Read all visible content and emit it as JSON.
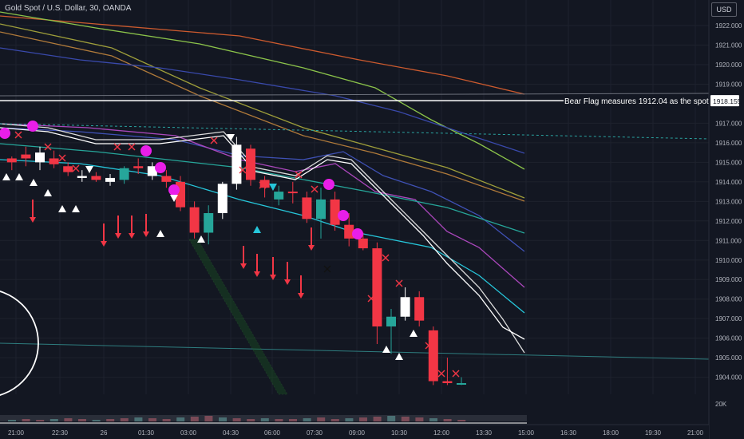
{
  "header": {
    "title": "Gold Spot / U.S. Dollar, 30, OANDA",
    "currency_button": "USD"
  },
  "annotation": {
    "text": "Bear Flag measures 1912.04 as the spot",
    "price_tag": "1918.155",
    "price": 1918.155
  },
  "volume_label": "20K",
  "colors": {
    "background": "#131722",
    "bull": "#26a69a",
    "bear": "#f23645",
    "white_candle": "#ffffff",
    "marker": "#e91ee9",
    "price_tag_bg": "#ffffff"
  },
  "chart_data": {
    "type": "candlestick",
    "title": "Gold Spot / U.S. Dollar, 30, OANDA",
    "y_axis": {
      "ticks": [
        "1922.000",
        "1921.000",
        "1920.000",
        "1919.000",
        "1917.000",
        "1916.000",
        "1915.000",
        "1914.000",
        "1913.000",
        "1912.000",
        "1911.000",
        "1910.000",
        "1909.000",
        "1908.000",
        "1907.000",
        "1906.000",
        "1905.000",
        "1904.000"
      ],
      "range": [
        1903.3,
        1922.6
      ]
    },
    "x_axis": {
      "ticks": [
        "21:00",
        "22:30",
        "26",
        "01:30",
        "03:00",
        "04:30",
        "06:00",
        "07:30",
        "09:00",
        "10:30",
        "12:00",
        "13:30",
        "15:00",
        "16:30",
        "18:00",
        "19:30",
        "21:00"
      ]
    },
    "candles": [
      {
        "o": 1915.0,
        "h": 1915.3,
        "l": 1914.6,
        "c": 1915.2,
        "color": "bear"
      },
      {
        "o": 1915.2,
        "h": 1915.8,
        "l": 1914.8,
        "c": 1915.4,
        "color": "bear"
      },
      {
        "o": 1915.0,
        "h": 1915.8,
        "l": 1914.6,
        "c": 1915.5,
        "color": "white"
      },
      {
        "o": 1915.2,
        "h": 1915.6,
        "l": 1914.7,
        "c": 1914.9,
        "color": "bear"
      },
      {
        "o": 1914.8,
        "h": 1915.0,
        "l": 1914.3,
        "c": 1914.5,
        "color": "bear"
      },
      {
        "o": 1914.2,
        "h": 1914.6,
        "l": 1914.0,
        "c": 1914.3,
        "color": "white"
      },
      {
        "o": 1914.3,
        "h": 1914.5,
        "l": 1914.0,
        "c": 1914.1,
        "color": "bear"
      },
      {
        "o": 1914.0,
        "h": 1914.4,
        "l": 1913.8,
        "c": 1914.2,
        "color": "white"
      },
      {
        "o": 1914.1,
        "h": 1914.8,
        "l": 1913.9,
        "c": 1914.7,
        "color": "bull"
      },
      {
        "o": 1914.7,
        "h": 1915.2,
        "l": 1914.4,
        "c": 1914.8,
        "color": "bear"
      },
      {
        "o": 1914.8,
        "h": 1915.0,
        "l": 1914.1,
        "c": 1914.3,
        "color": "white"
      },
      {
        "o": 1914.3,
        "h": 1914.6,
        "l": 1913.7,
        "c": 1914.0,
        "color": "bear"
      },
      {
        "o": 1914.0,
        "h": 1914.3,
        "l": 1912.5,
        "c": 1912.7,
        "color": "bear"
      },
      {
        "o": 1912.7,
        "h": 1913.0,
        "l": 1911.1,
        "c": 1911.4,
        "color": "bear"
      },
      {
        "o": 1911.4,
        "h": 1912.8,
        "l": 1910.8,
        "c": 1912.4,
        "color": "bull"
      },
      {
        "o": 1912.4,
        "h": 1914.0,
        "l": 1912.1,
        "c": 1913.9,
        "color": "white"
      },
      {
        "o": 1913.9,
        "h": 1916.3,
        "l": 1913.6,
        "c": 1915.9,
        "color": "white"
      },
      {
        "o": 1915.7,
        "h": 1915.9,
        "l": 1913.8,
        "c": 1914.1,
        "color": "bear"
      },
      {
        "o": 1914.1,
        "h": 1914.3,
        "l": 1913.2,
        "c": 1913.7,
        "color": "bear"
      },
      {
        "o": 1913.5,
        "h": 1913.8,
        "l": 1912.8,
        "c": 1913.1,
        "color": "bull"
      },
      {
        "o": 1913.5,
        "h": 1914.0,
        "l": 1912.9,
        "c": 1913.5,
        "color": "bear"
      },
      {
        "o": 1913.2,
        "h": 1913.5,
        "l": 1911.9,
        "c": 1912.1,
        "color": "bear"
      },
      {
        "o": 1912.1,
        "h": 1913.7,
        "l": 1911.1,
        "c": 1913.1,
        "color": "bull"
      },
      {
        "o": 1913.1,
        "h": 1913.5,
        "l": 1911.5,
        "c": 1911.8,
        "color": "bear"
      },
      {
        "o": 1911.8,
        "h": 1912.4,
        "l": 1910.7,
        "c": 1911.1,
        "color": "bear"
      },
      {
        "o": 1911.1,
        "h": 1911.4,
        "l": 1910.5,
        "c": 1910.6,
        "color": "bear"
      },
      {
        "o": 1910.6,
        "h": 1910.9,
        "l": 1905.7,
        "c": 1906.6,
        "color": "bear"
      },
      {
        "o": 1906.6,
        "h": 1907.5,
        "l": 1905.2,
        "c": 1907.1,
        "color": "bull"
      },
      {
        "o": 1907.1,
        "h": 1908.6,
        "l": 1906.9,
        "c": 1908.1,
        "color": "white"
      },
      {
        "o": 1908.1,
        "h": 1908.4,
        "l": 1906.6,
        "c": 1906.9,
        "color": "bear"
      },
      {
        "o": 1906.4,
        "h": 1906.6,
        "l": 1903.6,
        "c": 1903.8,
        "color": "bear"
      },
      {
        "o": 1903.8,
        "h": 1905.0,
        "l": 1903.6,
        "c": 1903.7,
        "color": "bear"
      },
      {
        "o": 1903.7,
        "h": 1904.0,
        "l": 1903.6,
        "c": 1903.7,
        "color": "bull"
      }
    ]
  }
}
